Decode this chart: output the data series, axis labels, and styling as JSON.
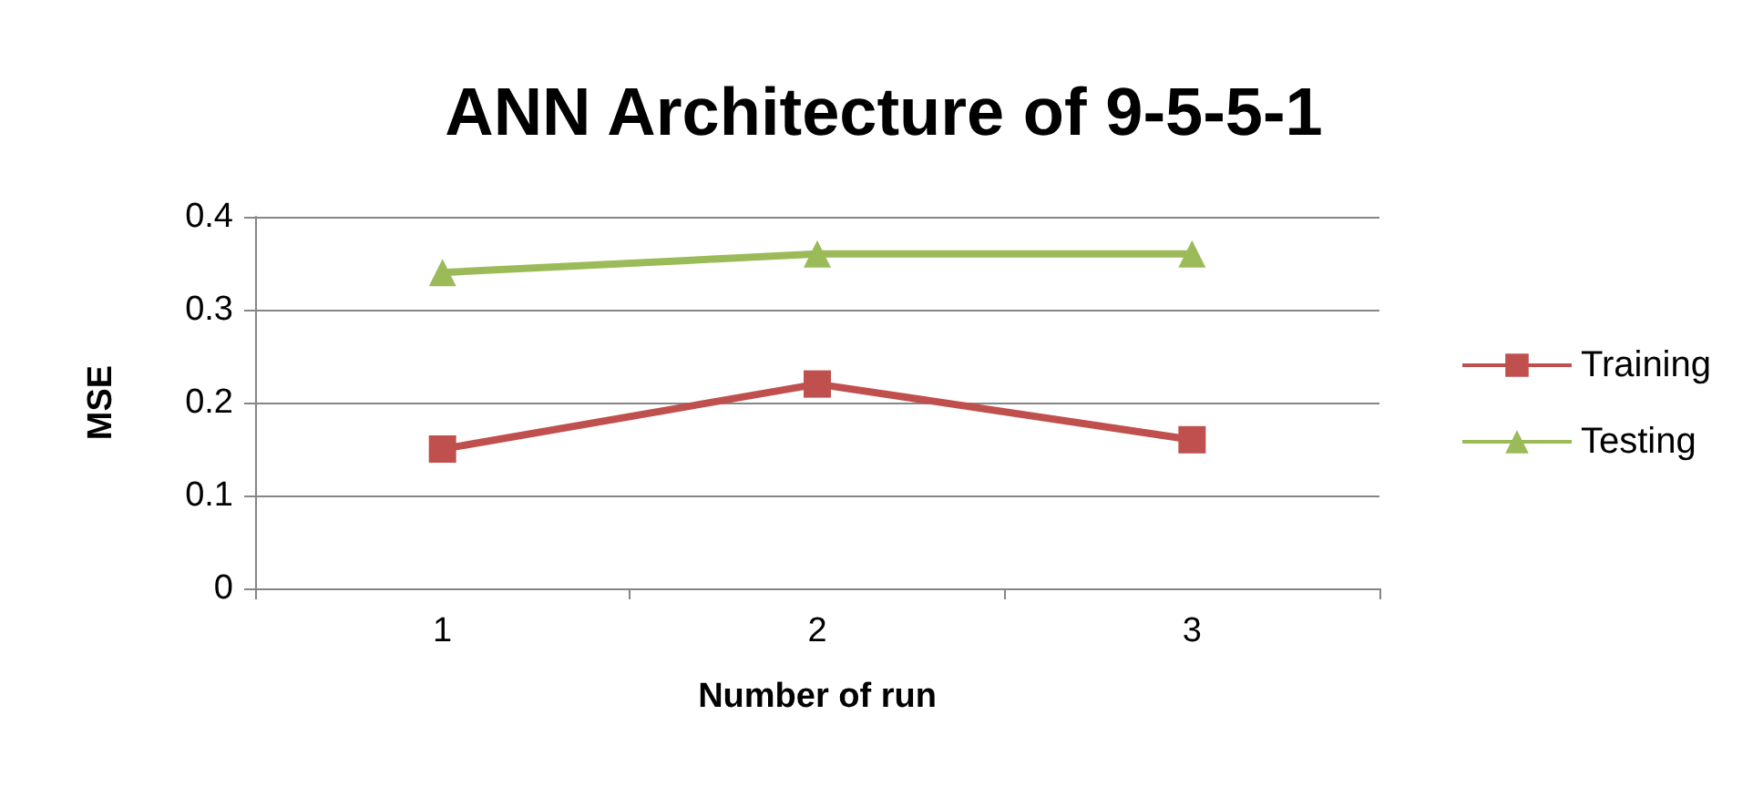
{
  "chart_data": {
    "type": "line",
    "title": "ANN Architecture of 9-5-5-1",
    "xlabel": "Number of run",
    "ylabel": "MSE",
    "categories": [
      "1",
      "2",
      "3"
    ],
    "series": [
      {
        "name": "Training",
        "color": "#c0504d",
        "values": [
          0.15,
          0.22,
          0.16
        ],
        "marker": "square"
      },
      {
        "name": "Testing",
        "color": "#9bbb59",
        "values": [
          0.34,
          0.36,
          0.36
        ],
        "marker": "triangle"
      }
    ],
    "ylim": [
      0,
      0.4
    ],
    "yticks": [
      0,
      0.1,
      0.2,
      0.3,
      0.4
    ],
    "grid": "y",
    "legend": "right"
  }
}
